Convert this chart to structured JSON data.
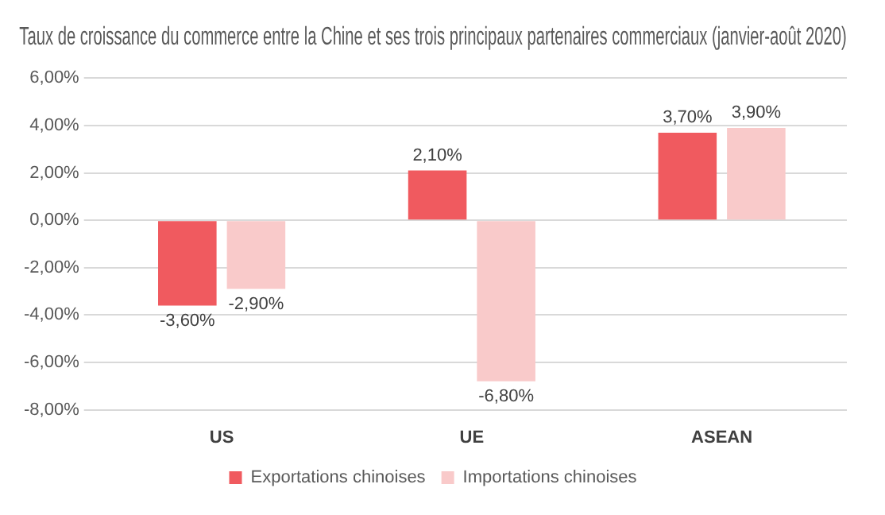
{
  "chart_data": {
    "type": "bar",
    "title": "Taux de croissance du commerce entre la Chine et ses trois principaux partenaires commerciaux (janvier-août 2020)",
    "categories": [
      "US",
      "UE",
      "ASEAN"
    ],
    "series": [
      {
        "name": "Exportations chinoises",
        "color": "#f05a5f",
        "values": [
          -3.6,
          2.1,
          3.7
        ],
        "value_labels": [
          "-3,60%",
          "2,10%",
          "3,70%"
        ]
      },
      {
        "name": "Importations chinoises",
        "color": "#f9caca",
        "values": [
          -2.9,
          -6.8,
          3.9
        ],
        "value_labels": [
          "-2,90%",
          "-6,80%",
          "3,90%"
        ]
      }
    ],
    "ylim": [
      -8,
      6
    ],
    "yticks": [
      {
        "value": -8,
        "label": "-8,00%"
      },
      {
        "value": -6,
        "label": "-6,00%"
      },
      {
        "value": -4,
        "label": "-4,00%"
      },
      {
        "value": -2,
        "label": "-2,00%"
      },
      {
        "value": 0,
        "label": "0,00%"
      },
      {
        "value": 2,
        "label": "2,00%"
      },
      {
        "value": 4,
        "label": "4,00%"
      },
      {
        "value": 6,
        "label": "6,00%"
      }
    ],
    "grid": "y",
    "legend": "bottom"
  }
}
